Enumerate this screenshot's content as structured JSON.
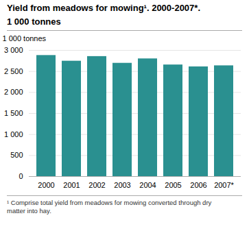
{
  "chart_data": {
    "type": "bar",
    "title": "Yield from meadows for mowing¹. 2000-2007*.",
    "subtitle": "1 000 tonnes",
    "ylabel": "1 000 tonnes",
    "caption": "¹ Comprise total yield from meadows for mowing converted through dry\nmatter into hay.",
    "categories": [
      "2000",
      "2001",
      "2002",
      "2003",
      "2004",
      "2005",
      "2006",
      "2007*"
    ],
    "values": [
      2880,
      2745,
      2855,
      2695,
      2800,
      2655,
      2610,
      2635
    ],
    "color": "#2a9090",
    "ylim": [
      0,
      3000
    ],
    "yticks": [
      0,
      500,
      {
        "value": 1000,
        "label": "1 000"
      },
      {
        "value": 1500,
        "label": "1 500"
      },
      {
        "value": 2000,
        "label": "2 000"
      },
      {
        "value": 2500,
        "label": "2 500"
      },
      {
        "value": 3000,
        "label": "3 000"
      }
    ],
    "grid": true
  }
}
